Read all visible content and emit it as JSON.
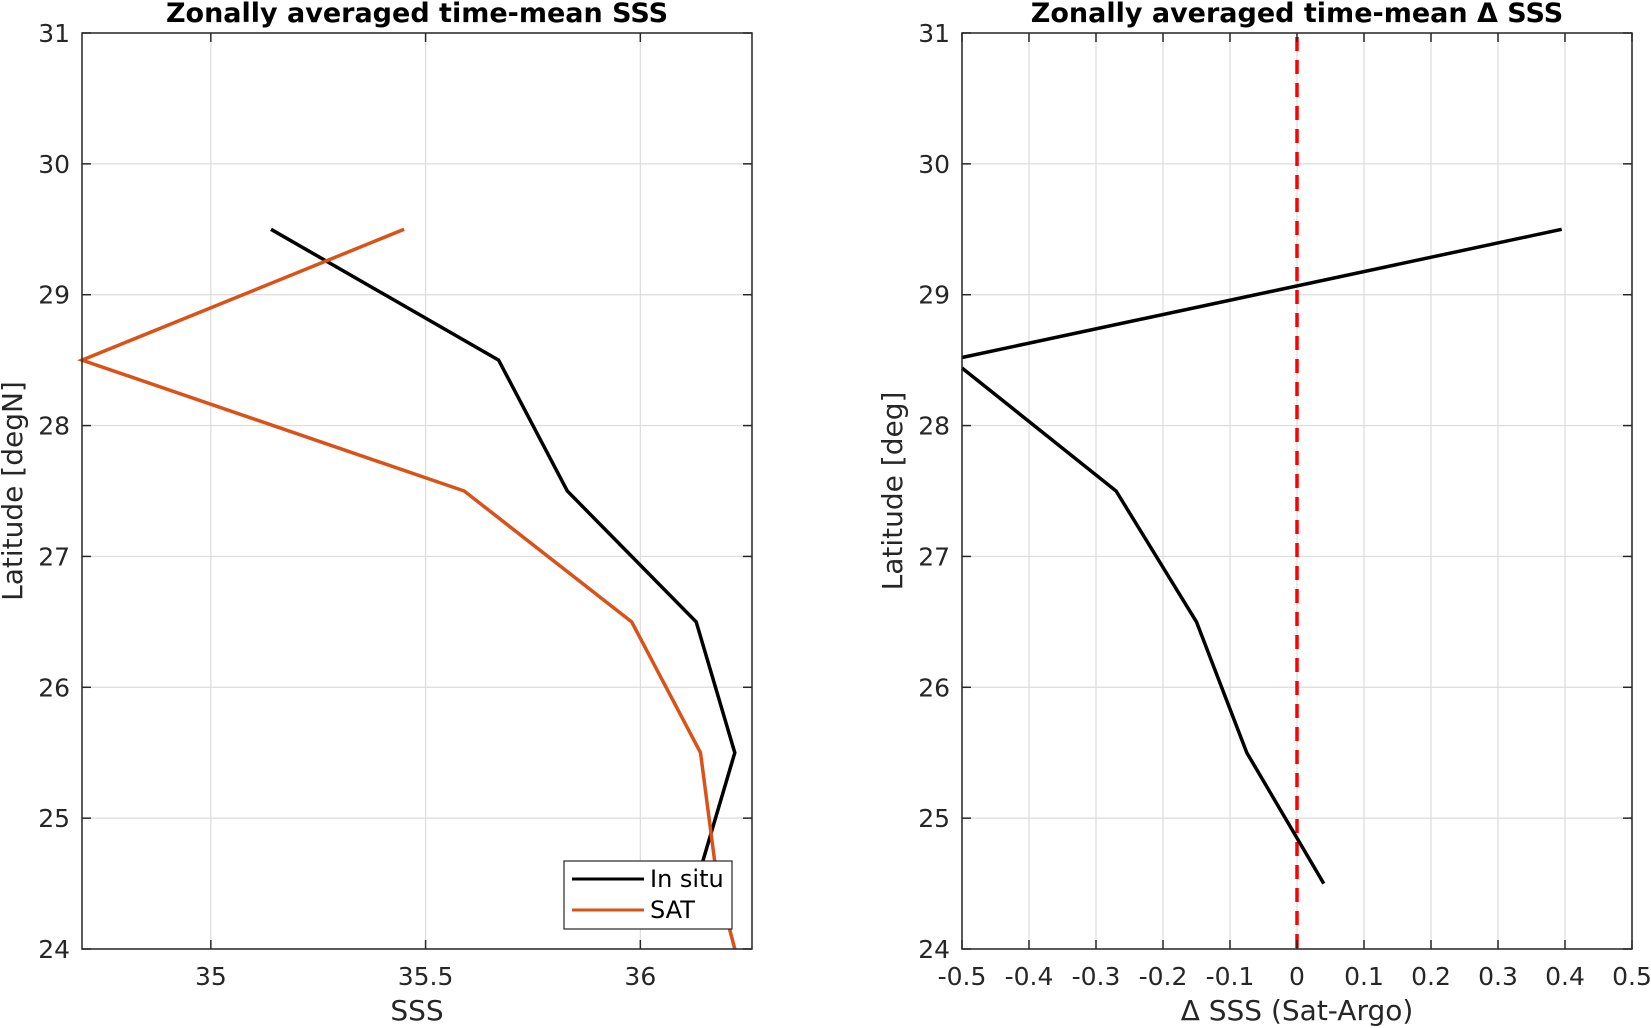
{
  "chart_data": [
    {
      "type": "line",
      "title": "Zonally averaged time-mean SSS",
      "xlabel": "SSS",
      "ylabel": "Latitude [degN]",
      "xlim": [
        34.7,
        36.26
      ],
      "ylim": [
        24,
        31
      ],
      "xticks": [
        35,
        35.5,
        36
      ],
      "xtick_labels": [
        "35",
        "35.5",
        "36"
      ],
      "yticks": [
        24,
        25,
        26,
        27,
        28,
        29,
        30,
        31
      ],
      "ytick_labels": [
        "24",
        "25",
        "26",
        "27",
        "28",
        "29",
        "30",
        "31"
      ],
      "grid": true,
      "legend_position": "bottom-right",
      "series": [
        {
          "name": "In situ",
          "color": "#000000",
          "points": [
            [
              35.14,
              29.5
            ],
            [
              35.67,
              28.5
            ],
            [
              35.83,
              27.5
            ],
            [
              36.13,
              26.5
            ],
            [
              36.22,
              25.5
            ],
            [
              36.13,
              24.5
            ]
          ]
        },
        {
          "name": "SAT",
          "color": "#D95319",
          "points": [
            [
              35.45,
              29.5
            ],
            [
              34.7,
              28.5
            ],
            [
              35.59,
              27.5
            ],
            [
              35.98,
              26.5
            ],
            [
              36.14,
              25.5
            ],
            [
              36.18,
              24.5
            ],
            [
              36.22,
              24.0
            ]
          ]
        }
      ]
    },
    {
      "type": "line",
      "title": "Zonally averaged time-mean Δ SSS",
      "xlabel": "Δ SSS (Sat-Argo)",
      "ylabel": "Latitude [deg]",
      "xlim": [
        -0.5,
        0.5
      ],
      "ylim": [
        24,
        31
      ],
      "xticks": [
        -0.5,
        -0.4,
        -0.3,
        -0.2,
        -0.1,
        0,
        0.1,
        0.2,
        0.3,
        0.4,
        0.5
      ],
      "xtick_labels": [
        "-0.5",
        "-0.4",
        "-0.3",
        "-0.2",
        "-0.1",
        "0",
        "0.1",
        "0.2",
        "0.3",
        "0.4",
        "0.5"
      ],
      "yticks": [
        24,
        25,
        26,
        27,
        28,
        29,
        30,
        31
      ],
      "ytick_labels": [
        "24",
        "25",
        "26",
        "27",
        "28",
        "29",
        "30",
        "31"
      ],
      "grid": true,
      "series": [
        {
          "color": "#000000",
          "points": [
            [
              0.395,
              29.5
            ],
            [
              -0.5,
              28.52
            ]
          ]
        },
        {
          "color": "#000000",
          "points": [
            [
              -0.5,
              28.44
            ],
            [
              -0.27,
              27.5
            ],
            [
              -0.15,
              26.5
            ],
            [
              -0.075,
              25.5
            ],
            [
              0.04,
              24.5
            ]
          ]
        }
      ],
      "reference_line": {
        "x": 0,
        "color": "#FF0000",
        "style": "dashed"
      }
    }
  ]
}
